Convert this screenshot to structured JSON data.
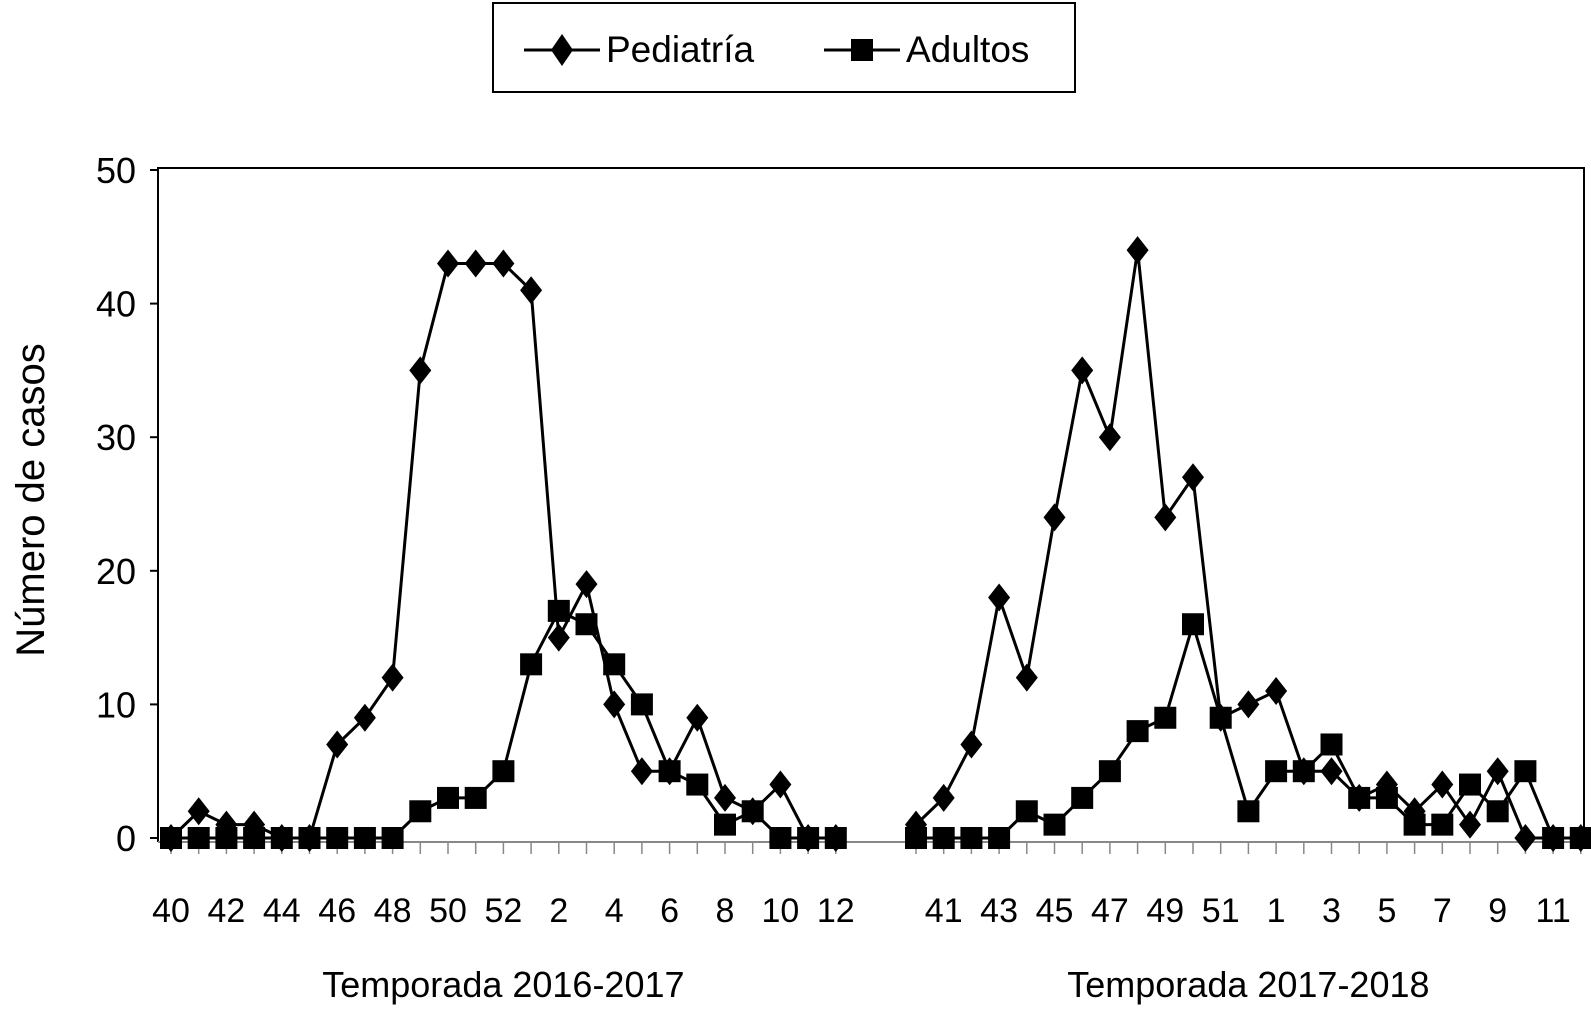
{
  "chart_data": {
    "type": "line",
    "ylabel": "Número de casos",
    "ylim": [
      0,
      50
    ],
    "yticks": [
      0,
      10,
      20,
      30,
      40,
      50
    ],
    "legend": {
      "placement": "top"
    },
    "series": [
      {
        "name": "Pediatría",
        "marker": "diamond"
      },
      {
        "name": "Adultos",
        "marker": "square"
      }
    ],
    "panels": [
      {
        "season": "Temporada 2016-2017",
        "x": [
          "40",
          "41",
          "42",
          "43",
          "44",
          "45",
          "46",
          "47",
          "48",
          "49",
          "50",
          "51",
          "52",
          "1",
          "2",
          "3",
          "4",
          "5",
          "6",
          "7",
          "8",
          "9",
          "10",
          "11",
          "12"
        ],
        "tick_labels": [
          "40",
          "",
          "42",
          "",
          "44",
          "",
          "46",
          "",
          "48",
          "",
          "50",
          "",
          "52",
          "",
          "2",
          "",
          "4",
          "",
          "6",
          "",
          "8",
          "",
          "10",
          "",
          "12"
        ],
        "pediatria": [
          0,
          2,
          1,
          1,
          0,
          0,
          7,
          9,
          12,
          35,
          43,
          43,
          43,
          41,
          15,
          19,
          10,
          5,
          5,
          9,
          3,
          2,
          4,
          0,
          0
        ],
        "adultos": [
          0,
          0,
          0,
          0,
          0,
          0,
          0,
          0,
          0,
          2,
          3,
          3,
          5,
          13,
          17,
          16,
          13,
          10,
          5,
          4,
          1,
          2,
          0,
          0,
          0
        ]
      },
      {
        "season": "Temporada 2017-2018",
        "x": [
          "40",
          "41",
          "42",
          "43",
          "44",
          "45",
          "46",
          "47",
          "48",
          "49",
          "50",
          "51",
          "52",
          "1",
          "2",
          "3",
          "4",
          "5",
          "6",
          "7",
          "8",
          "9",
          "10",
          "11",
          "12"
        ],
        "tick_labels": [
          "",
          "41",
          "",
          "43",
          "",
          "45",
          "",
          "47",
          "",
          "49",
          "",
          "51",
          "",
          "1",
          "",
          "3",
          "",
          "5",
          "",
          "7",
          "",
          "9",
          "",
          "11",
          ""
        ],
        "pediatria": [
          1,
          3,
          7,
          18,
          12,
          24,
          35,
          30,
          44,
          24,
          27,
          9,
          10,
          11,
          5,
          5,
          3,
          4,
          2,
          4,
          1,
          5,
          0,
          0,
          0
        ],
        "adultos": [
          0,
          0,
          0,
          0,
          2,
          1,
          3,
          5,
          8,
          9,
          16,
          9,
          2,
          5,
          5,
          7,
          3,
          3,
          1,
          1,
          4,
          2,
          5,
          0,
          0
        ]
      }
    ]
  }
}
